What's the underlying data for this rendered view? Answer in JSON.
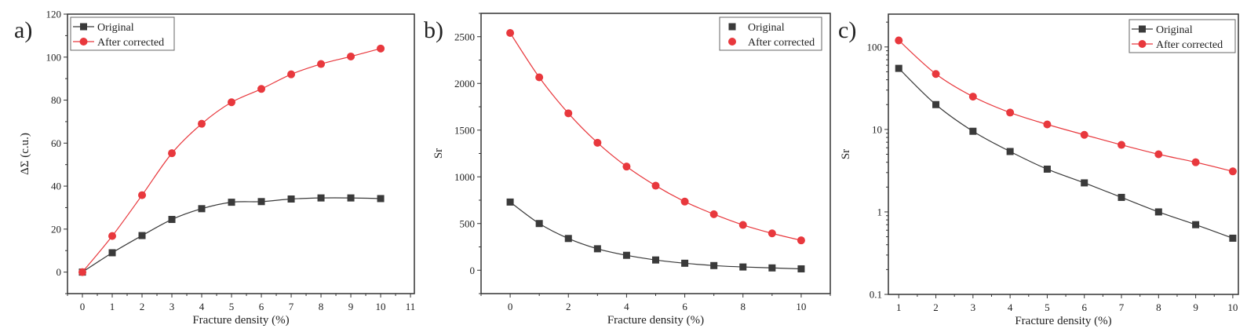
{
  "chart_data": [
    {
      "panel_label": "a)",
      "type": "line",
      "xlabel": "Fracture density (%)",
      "ylabel": "ΔΣ (c.u.)",
      "xlim": [
        -0.5,
        11.13
      ],
      "ylim": [
        -10,
        120
      ],
      "xticks": [
        0,
        1,
        2,
        3,
        4,
        5,
        6,
        7,
        8,
        9,
        10,
        11
      ],
      "yticks": [
        0,
        20,
        40,
        60,
        80,
        100,
        120
      ],
      "yscale": "linear",
      "grid": false,
      "legend": "top-left",
      "legend_style": "line-marker",
      "x": [
        0,
        1,
        2,
        3,
        4,
        5,
        6,
        7,
        8,
        9,
        10
      ],
      "series": [
        {
          "name": "Original",
          "color": "#3a3a3a",
          "marker": "square",
          "values": [
            0,
            9,
            17,
            24.5,
            29.5,
            32.5,
            32.8,
            34,
            34.5,
            34.5,
            34.2
          ]
        },
        {
          "name": "After corrected",
          "color": "#e8383d",
          "marker": "circle",
          "values": [
            0,
            16.8,
            35.8,
            55.3,
            69,
            79,
            85.2,
            92,
            96.8,
            100.3,
            104
          ]
        }
      ]
    },
    {
      "panel_label": "b)",
      "type": "scatter",
      "xlabel": "Fracture density (%)",
      "ylabel": "Sr",
      "xlim": [
        -1,
        11
      ],
      "ylim": [
        -250,
        2750
      ],
      "xticks": [
        0,
        2,
        4,
        6,
        8,
        10
      ],
      "yticks": [
        0,
        500,
        1000,
        1500,
        2000,
        2500
      ],
      "yscale": "linear",
      "grid": false,
      "legend": "top-right",
      "legend_style": "marker",
      "x": [
        0,
        1,
        2,
        3,
        4,
        5,
        6,
        7,
        8,
        9,
        10
      ],
      "series": [
        {
          "name": "Original",
          "color": "#3a3a3a",
          "marker": "square",
          "values": [
            730,
            500,
            340,
            230,
            160,
            110,
            75,
            50,
            35,
            25,
            15
          ]
        },
        {
          "name": "After corrected",
          "color": "#e8383d",
          "marker": "circle",
          "values": [
            2540,
            2065,
            1680,
            1365,
            1110,
            905,
            735,
            600,
            485,
            395,
            320
          ]
        }
      ]
    },
    {
      "panel_label": "c)",
      "type": "line",
      "xlabel": "Fracture density (%)",
      "ylabel": "Sr",
      "xlim": [
        0.72,
        10.15
      ],
      "ylim": [
        0.1,
        250
      ],
      "xticks": [
        1,
        2,
        3,
        4,
        5,
        6,
        7,
        8,
        9,
        10
      ],
      "yticks": [
        0.1,
        1,
        10,
        100
      ],
      "yscale": "log",
      "grid": false,
      "legend": "top-right",
      "legend_style": "line-marker",
      "x": [
        1,
        2,
        3,
        4,
        5,
        6,
        7,
        8,
        9,
        10
      ],
      "series": [
        {
          "name": "Original",
          "color": "#3a3a3a",
          "marker": "square",
          "values": [
            55,
            20,
            9.5,
            5.4,
            3.3,
            2.25,
            1.5,
            1.0,
            0.7,
            0.48
          ]
        },
        {
          "name": "After corrected",
          "color": "#e8383d",
          "marker": "circle",
          "values": [
            120,
            47,
            25,
            16,
            11.5,
            8.6,
            6.5,
            5.0,
            4.0,
            3.1
          ]
        }
      ]
    }
  ]
}
